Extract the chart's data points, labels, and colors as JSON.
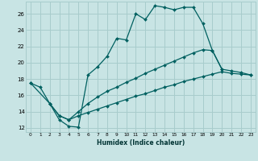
{
  "xlabel": "Humidex (Indice chaleur)",
  "background_color": "#c8e4e4",
  "grid_color": "#a8cccc",
  "line_color": "#006060",
  "xlim": [
    -0.5,
    23.5
  ],
  "ylim": [
    11.5,
    27.5
  ],
  "xticks": [
    0,
    1,
    2,
    3,
    4,
    5,
    6,
    7,
    8,
    9,
    10,
    11,
    12,
    13,
    14,
    15,
    16,
    17,
    18,
    19,
    20,
    21,
    22,
    23
  ],
  "yticks": [
    12,
    14,
    16,
    18,
    20,
    22,
    24,
    26
  ],
  "line1_x": [
    0,
    1,
    2,
    3,
    4,
    5,
    6,
    7,
    8,
    9,
    10,
    11,
    12,
    13,
    14,
    15,
    16,
    17,
    18,
    19,
    20
  ],
  "line1_y": [
    17.5,
    17.0,
    15.0,
    13.0,
    12.2,
    12.1,
    18.5,
    19.5,
    20.8,
    23.0,
    22.8,
    26.0,
    25.3,
    27.0,
    26.8,
    26.5,
    26.8,
    26.8,
    24.8,
    21.5,
    19.2
  ],
  "line2_x": [
    0,
    2,
    3,
    4,
    5,
    6,
    7,
    8,
    9,
    10,
    11,
    12,
    13,
    14,
    15,
    16,
    17,
    18,
    19,
    20,
    21,
    22,
    23
  ],
  "line2_y": [
    17.5,
    15.0,
    13.5,
    13.0,
    14.0,
    15.0,
    15.8,
    16.5,
    17.0,
    17.6,
    18.1,
    18.7,
    19.2,
    19.7,
    20.2,
    20.7,
    21.2,
    21.6,
    21.5,
    19.2,
    19.0,
    18.8,
    18.5
  ],
  "line3_x": [
    2,
    3,
    4,
    5,
    6,
    7,
    8,
    9,
    10,
    11,
    12,
    13,
    14,
    15,
    16,
    17,
    18,
    19,
    20,
    21,
    22,
    23
  ],
  "line3_y": [
    15.0,
    13.5,
    13.0,
    13.5,
    13.9,
    14.3,
    14.7,
    15.1,
    15.5,
    15.9,
    16.2,
    16.6,
    17.0,
    17.3,
    17.7,
    18.0,
    18.3,
    18.6,
    18.9,
    18.7,
    18.6,
    18.5
  ]
}
